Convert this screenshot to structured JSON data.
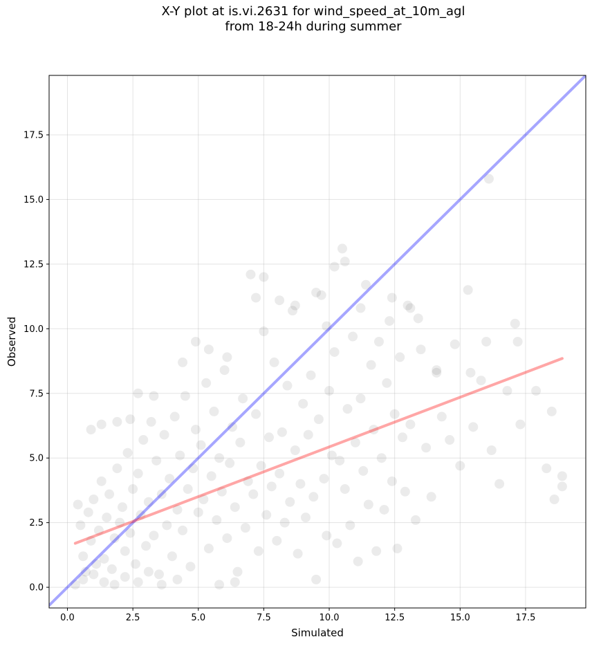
{
  "chart_data": {
    "type": "scatter",
    "title_lines": [
      "X-Y plot at is.vi.2631 for wind_speed_at_10m_agl",
      "from 18-24h during summer"
    ],
    "xlabel": "Simulated",
    "ylabel": "Observed",
    "xlim": [
      -0.7,
      19.8
    ],
    "ylim": [
      -0.8,
      19.8
    ],
    "x_ticks": [
      0.0,
      2.5,
      5.0,
      7.5,
      10.0,
      12.5,
      15.0,
      17.5
    ],
    "x_tick_labels": [
      "0.0",
      "2.5",
      "5.0",
      "7.5",
      "10.0",
      "12.5",
      "15.0",
      "17.5"
    ],
    "y_ticks": [
      0.0,
      2.5,
      5.0,
      7.5,
      10.0,
      12.5,
      15.0,
      17.5
    ],
    "y_tick_labels": [
      "0.0",
      "2.5",
      "5.0",
      "7.5",
      "10.0",
      "12.5",
      "15.0",
      "17.5"
    ],
    "grid": true,
    "marker_color": "#000000",
    "marker_alpha": 0.08,
    "lines": [
      {
        "role": "one-to-one",
        "color": "#0000ff",
        "alpha": 0.35,
        "x": [
          -0.7,
          19.8
        ],
        "y": [
          -0.7,
          19.8
        ]
      },
      {
        "role": "regression",
        "color": "#ff0000",
        "alpha": 0.35,
        "x": [
          0.3,
          18.9
        ],
        "y": [
          1.7,
          8.85
        ]
      }
    ],
    "points": [
      [
        0.4,
        3.2
      ],
      [
        0.5,
        2.4
      ],
      [
        0.6,
        1.2
      ],
      [
        0.7,
        0.6
      ],
      [
        0.8,
        2.9
      ],
      [
        0.9,
        1.8
      ],
      [
        1.0,
        3.4
      ],
      [
        1.1,
        0.9
      ],
      [
        1.2,
        2.2
      ],
      [
        1.3,
        4.1
      ],
      [
        1.4,
        1.1
      ],
      [
        1.5,
        2.7
      ],
      [
        1.6,
        3.6
      ],
      [
        1.7,
        0.7
      ],
      [
        1.8,
        1.9
      ],
      [
        1.9,
        4.6
      ],
      [
        2.0,
        2.5
      ],
      [
        2.1,
        3.1
      ],
      [
        2.2,
        1.4
      ],
      [
        2.3,
        5.2
      ],
      [
        2.4,
        2.1
      ],
      [
        2.5,
        3.8
      ],
      [
        2.6,
        0.9
      ],
      [
        2.7,
        4.4
      ],
      [
        2.8,
        2.8
      ],
      [
        2.9,
        5.7
      ],
      [
        3.0,
        1.6
      ],
      [
        3.1,
        3.3
      ],
      [
        3.2,
        6.4
      ],
      [
        3.3,
        2.0
      ],
      [
        3.4,
        4.9
      ],
      [
        3.5,
        0.5
      ],
      [
        3.6,
        3.6
      ],
      [
        3.7,
        5.9
      ],
      [
        3.8,
        2.4
      ],
      [
        3.9,
        4.2
      ],
      [
        4.0,
        1.2
      ],
      [
        4.1,
        6.6
      ],
      [
        4.2,
        3.0
      ],
      [
        4.3,
        5.1
      ],
      [
        4.4,
        2.2
      ],
      [
        4.5,
        7.4
      ],
      [
        4.6,
        3.8
      ],
      [
        4.7,
        0.8
      ],
      [
        4.8,
        4.6
      ],
      [
        4.9,
        6.1
      ],
      [
        5.0,
        2.9
      ],
      [
        5.1,
        5.5
      ],
      [
        5.2,
        3.4
      ],
      [
        5.3,
        7.9
      ],
      [
        5.4,
        1.5
      ],
      [
        5.5,
        4.3
      ],
      [
        5.6,
        6.8
      ],
      [
        5.7,
        2.6
      ],
      [
        5.8,
        5.0
      ],
      [
        5.9,
        3.7
      ],
      [
        6.0,
        8.4
      ],
      [
        6.1,
        1.9
      ],
      [
        6.2,
        4.8
      ],
      [
        6.3,
        6.2
      ],
      [
        6.4,
        3.1
      ],
      [
        6.5,
        0.6
      ],
      [
        6.6,
        5.6
      ],
      [
        6.7,
        7.3
      ],
      [
        6.8,
        2.3
      ],
      [
        6.9,
        4.1
      ],
      [
        7.0,
        12.1
      ],
      [
        7.1,
        3.6
      ],
      [
        7.2,
        6.7
      ],
      [
        7.3,
        1.4
      ],
      [
        7.4,
        4.7
      ],
      [
        7.5,
        9.9
      ],
      [
        7.6,
        2.8
      ],
      [
        7.7,
        5.8
      ],
      [
        7.8,
        3.9
      ],
      [
        7.9,
        8.7
      ],
      [
        8.0,
        1.8
      ],
      [
        8.1,
        4.4
      ],
      [
        8.2,
        6.0
      ],
      [
        8.3,
        2.5
      ],
      [
        8.4,
        7.8
      ],
      [
        8.5,
        3.3
      ],
      [
        8.6,
        10.7
      ],
      [
        8.7,
        5.3
      ],
      [
        8.8,
        1.3
      ],
      [
        8.9,
        4.0
      ],
      [
        9.0,
        7.1
      ],
      [
        9.1,
        2.7
      ],
      [
        9.2,
        5.9
      ],
      [
        9.3,
        8.2
      ],
      [
        9.4,
        3.5
      ],
      [
        9.5,
        0.3
      ],
      [
        9.6,
        6.5
      ],
      [
        9.7,
        11.3
      ],
      [
        9.8,
        4.2
      ],
      [
        9.9,
        2.0
      ],
      [
        10.0,
        7.6
      ],
      [
        10.1,
        5.1
      ],
      [
        10.2,
        9.1
      ],
      [
        10.3,
        1.7
      ],
      [
        10.4,
        4.9
      ],
      [
        10.5,
        13.1
      ],
      [
        10.6,
        3.8
      ],
      [
        10.7,
        6.9
      ],
      [
        10.8,
        2.4
      ],
      [
        10.9,
        9.7
      ],
      [
        11.0,
        5.6
      ],
      [
        11.1,
        1.0
      ],
      [
        11.2,
        7.3
      ],
      [
        11.3,
        4.5
      ],
      [
        11.4,
        11.7
      ],
      [
        11.5,
        3.2
      ],
      [
        11.6,
        8.6
      ],
      [
        11.7,
        6.1
      ],
      [
        11.8,
        1.4
      ],
      [
        11.9,
        9.5
      ],
      [
        12.0,
        5.0
      ],
      [
        12.1,
        3.0
      ],
      [
        12.2,
        7.9
      ],
      [
        12.3,
        10.3
      ],
      [
        12.4,
        4.1
      ],
      [
        12.5,
        6.7
      ],
      [
        12.6,
        1.5
      ],
      [
        12.7,
        8.9
      ],
      [
        12.8,
        5.8
      ],
      [
        12.9,
        3.7
      ],
      [
        13.0,
        10.9
      ],
      [
        13.1,
        6.3
      ],
      [
        13.3,
        2.6
      ],
      [
        13.5,
        9.2
      ],
      [
        13.7,
        5.4
      ],
      [
        13.9,
        3.5
      ],
      [
        14.1,
        8.3
      ],
      [
        14.3,
        6.6
      ],
      [
        14.6,
        5.7
      ],
      [
        14.8,
        9.4
      ],
      [
        15.0,
        4.7
      ],
      [
        15.3,
        11.5
      ],
      [
        15.5,
        6.2
      ],
      [
        15.8,
        8.0
      ],
      [
        16.1,
        15.8
      ],
      [
        16.2,
        5.3
      ],
      [
        16.5,
        4.0
      ],
      [
        16.8,
        7.6
      ],
      [
        17.1,
        10.2
      ],
      [
        17.3,
        6.3
      ],
      [
        17.9,
        7.6
      ],
      [
        18.3,
        4.6
      ],
      [
        18.6,
        3.4
      ],
      [
        18.9,
        4.3
      ],
      [
        0.3,
        0.1
      ],
      [
        0.6,
        0.3
      ],
      [
        1.0,
        0.5
      ],
      [
        1.4,
        0.2
      ],
      [
        1.8,
        0.1
      ],
      [
        2.2,
        0.4
      ],
      [
        2.7,
        0.2
      ],
      [
        3.1,
        0.6
      ],
      [
        3.6,
        0.1
      ],
      [
        4.2,
        0.3
      ],
      [
        5.8,
        0.1
      ],
      [
        6.4,
        0.2
      ],
      [
        0.9,
        6.1
      ],
      [
        1.3,
        6.3
      ],
      [
        1.9,
        6.4
      ],
      [
        2.4,
        6.5
      ],
      [
        2.7,
        7.5
      ],
      [
        3.3,
        7.4
      ],
      [
        4.4,
        8.7
      ],
      [
        4.9,
        9.5
      ],
      [
        5.4,
        9.2
      ],
      [
        6.1,
        8.9
      ],
      [
        7.2,
        11.2
      ],
      [
        7.5,
        12.0
      ],
      [
        8.1,
        11.1
      ],
      [
        8.7,
        10.9
      ],
      [
        9.5,
        11.4
      ],
      [
        9.9,
        10.1
      ],
      [
        10.2,
        12.4
      ],
      [
        10.6,
        12.6
      ],
      [
        11.2,
        10.8
      ],
      [
        12.4,
        11.2
      ],
      [
        13.1,
        10.8
      ],
      [
        13.4,
        10.4
      ],
      [
        14.1,
        8.4
      ],
      [
        15.4,
        8.3
      ],
      [
        16.0,
        9.5
      ],
      [
        17.2,
        9.5
      ],
      [
        18.5,
        6.8
      ],
      [
        18.9,
        3.9
      ]
    ]
  }
}
